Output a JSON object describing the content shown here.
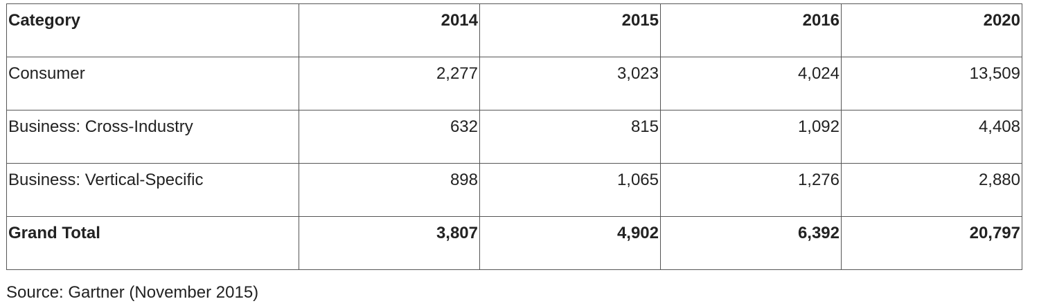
{
  "table": {
    "header": [
      "Category",
      "2014",
      "2015",
      "2016",
      "2020"
    ],
    "rows": [
      [
        "Consumer",
        "2,277",
        "3,023",
        "4,024",
        "13,509"
      ],
      [
        "Business: Cross-Industry",
        "632",
        "815",
        "1,092",
        "4,408"
      ],
      [
        "Business: Vertical-Specific",
        "898",
        "1,065",
        "1,276",
        "2,880"
      ],
      [
        "Grand Total",
        "3,807",
        "4,902",
        "6,392",
        "20,797"
      ]
    ]
  },
  "source": "Source: Gartner (November 2015)"
}
